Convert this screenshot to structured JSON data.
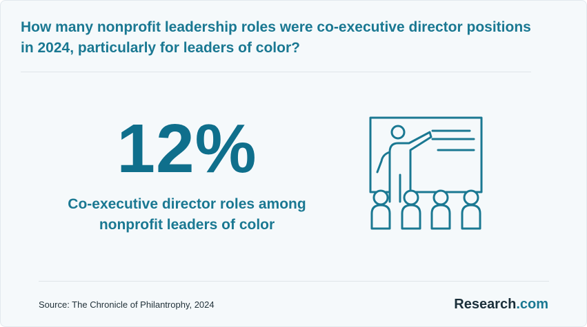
{
  "header": {
    "title": "How many nonprofit leadership roles were co-executive director positions in 2024, particularly for leaders of color?"
  },
  "stat": {
    "value": "12%",
    "label": "Co-executive director roles among nonprofit leaders of color"
  },
  "illustration": {
    "icon": "presentation-audience-icon",
    "color": "#1a7892"
  },
  "footer": {
    "source": "Source: The Chronicle of Philantrophy, 2024",
    "logo_main": "Research",
    "logo_suffix": ".com"
  },
  "colors": {
    "accent": "#1a7892",
    "background": "#f5f9fb",
    "text_dark": "#1b2f3a"
  }
}
